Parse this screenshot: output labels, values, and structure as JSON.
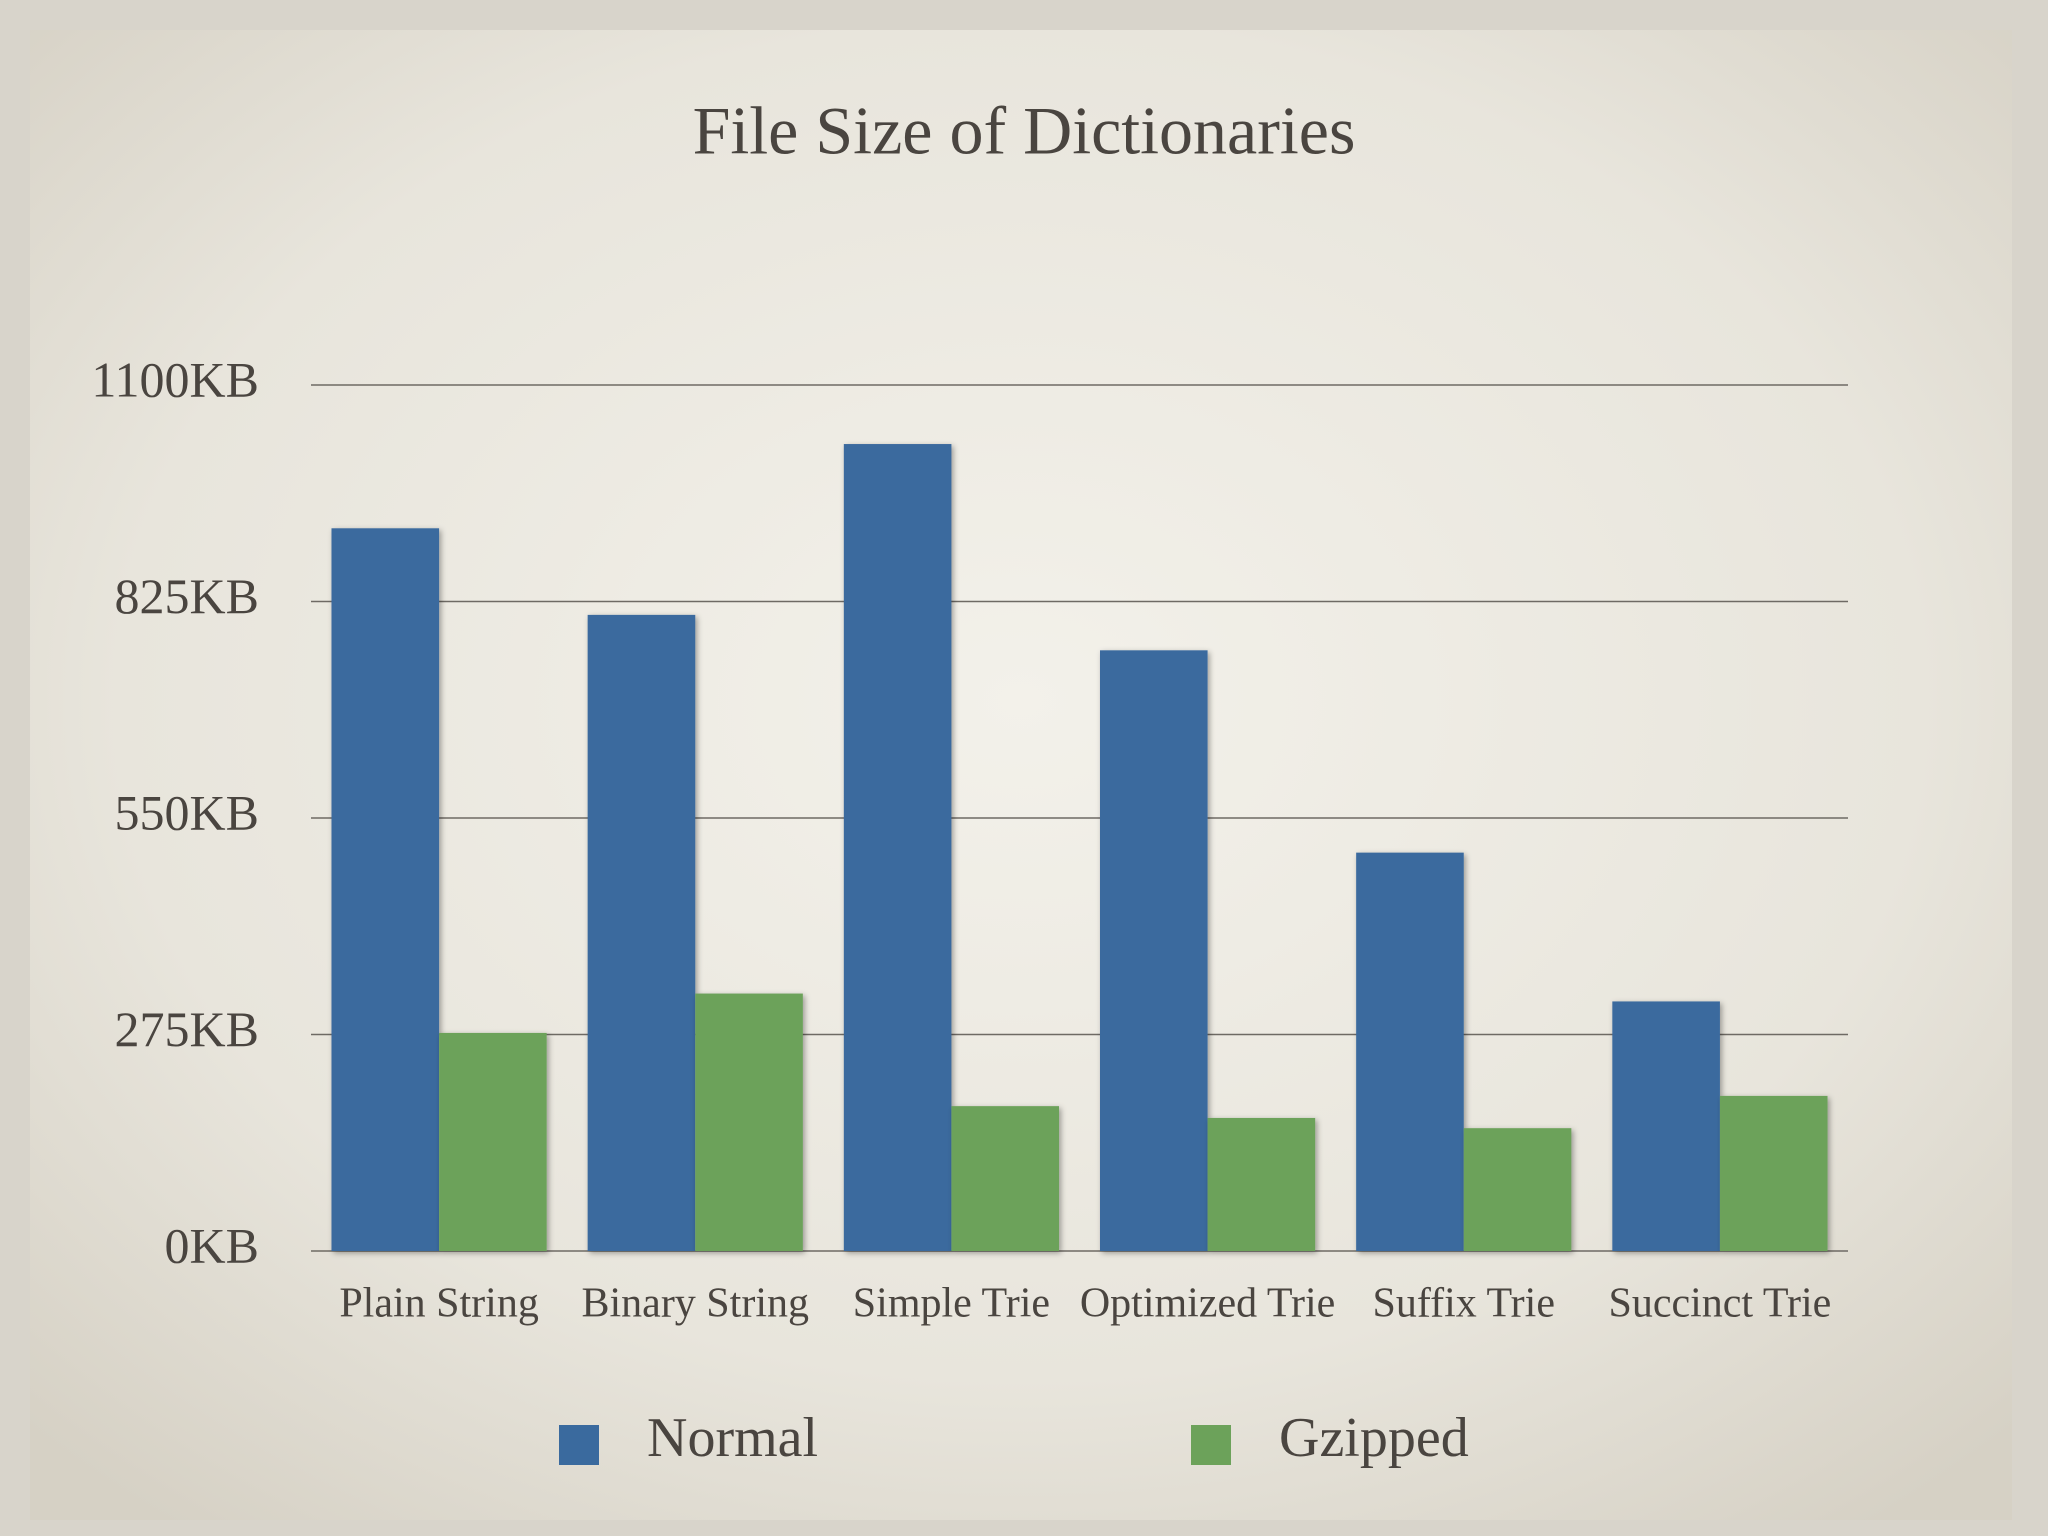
{
  "chart_data": {
    "type": "bar",
    "title": "File Size of Dictionaries",
    "categories": [
      "Plain String",
      "Binary String",
      "Simple Trie",
      "Optimized Trie",
      "Suffix Trie",
      "Succinct Trie"
    ],
    "series": [
      {
        "name": "Normal",
        "color": "#3a6a9e",
        "values": [
          918,
          808,
          1025,
          763,
          506,
          317
        ]
      },
      {
        "name": "Gzipped",
        "color": "#6ca25a",
        "values": [
          277,
          327,
          184,
          169,
          156,
          197
        ]
      }
    ],
    "ylim": [
      0,
      1100
    ],
    "yticks": [
      {
        "value": 0,
        "label": "0KB"
      },
      {
        "value": 275,
        "label": "275KB"
      },
      {
        "value": 550,
        "label": "550KB"
      },
      {
        "value": 825,
        "label": "825KB"
      },
      {
        "value": 1100,
        "label": "1100KB"
      }
    ],
    "grid": true,
    "legend": "bottom"
  }
}
